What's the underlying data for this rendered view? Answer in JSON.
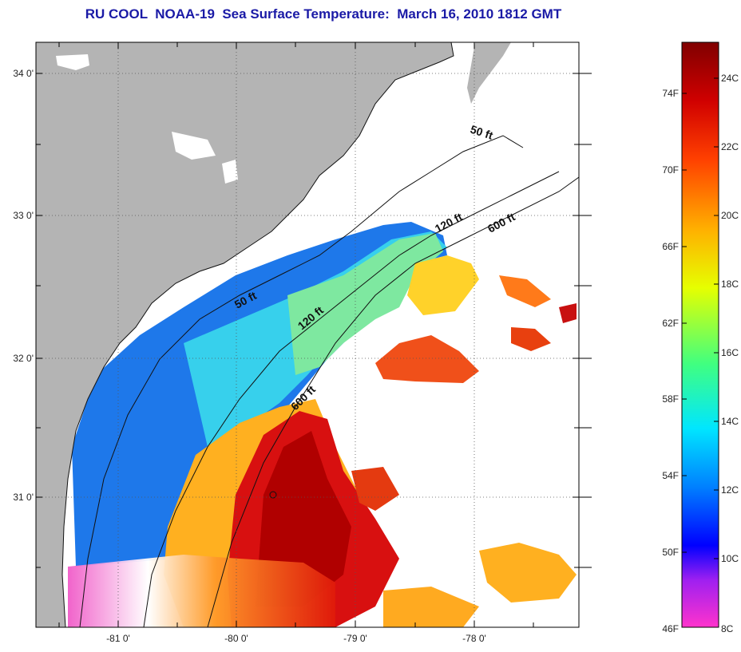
{
  "title": "RU COOL  NOAA-19  Sea Surface Temperature:  March 16, 2010 1812 GMT",
  "map": {
    "lat_labels": [
      "34 0'",
      "33 0'",
      "32 0'",
      "31 0'"
    ],
    "lon_labels": [
      "-81 0'",
      "-80 0'",
      "-79 0'",
      "-78 0'"
    ],
    "contour_labels": [
      "50 ft",
      "120 ft",
      "600 ft",
      "50 ft",
      "120 ft",
      "600 ft"
    ],
    "land_color": "#b4b4b4",
    "cloud_color": "#ffffff"
  },
  "colorbar": {
    "fahrenheit_labels": [
      "74F",
      "70F",
      "66F",
      "62F",
      "58F",
      "54F",
      "50F",
      "46F"
    ],
    "celsius_labels": [
      "24C",
      "22C",
      "20C",
      "18C",
      "16C",
      "14C",
      "12C",
      "10C",
      "8C"
    ],
    "colors": [
      "#ff33cc",
      "#a020f0",
      "#0000ff",
      "#0080ff",
      "#00e6ff",
      "#40ff80",
      "#e6ff00",
      "#ffb000",
      "#ff4000",
      "#d00000",
      "#800000"
    ]
  }
}
